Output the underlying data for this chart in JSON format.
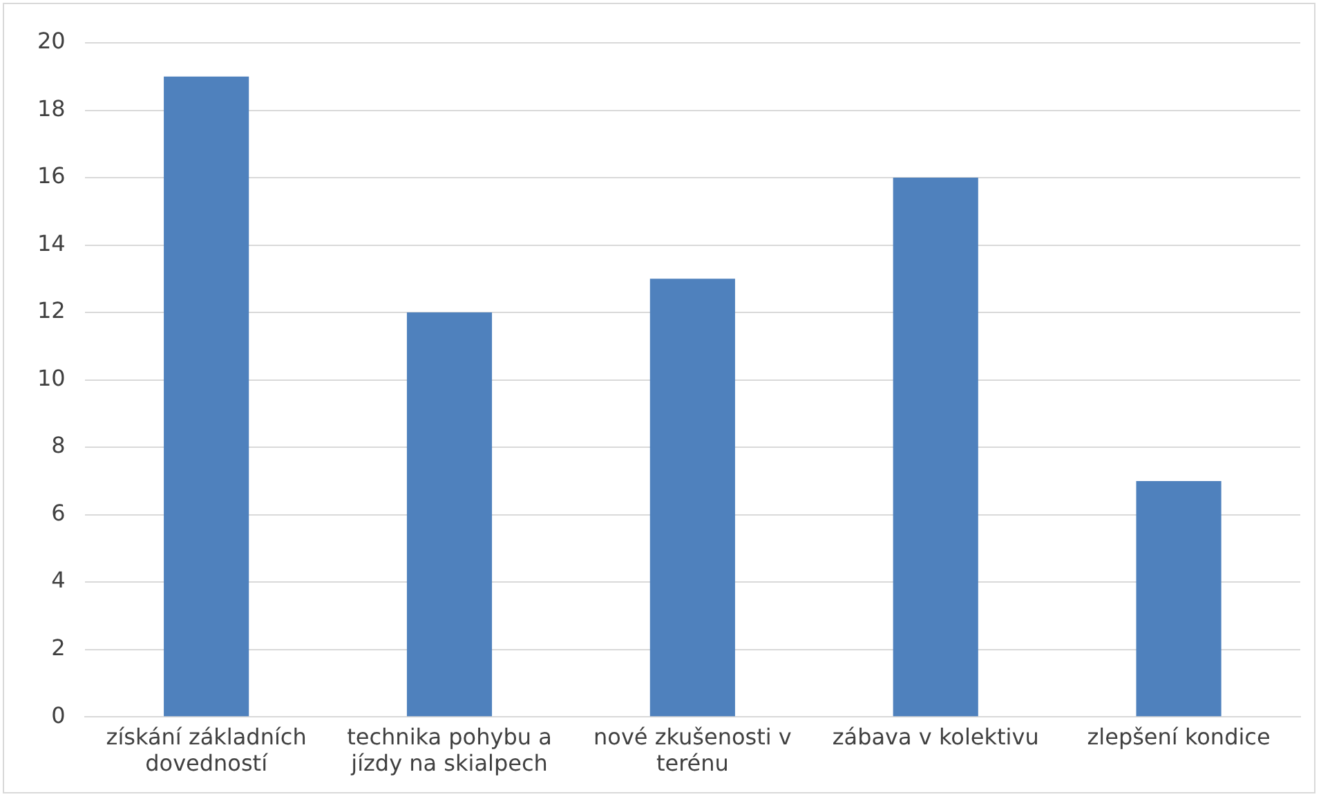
{
  "chart_data": {
    "type": "bar",
    "categories": [
      "získání základních dovedností",
      "technika pohybu a jízdy na skialpech",
      "nové zkušenosti v terénu",
      "zábava v kolektivu",
      "zlepšení kondice"
    ],
    "values": [
      19,
      12,
      13,
      16,
      7
    ],
    "color": "#4f81bd",
    "ylim": [
      0,
      20
    ],
    "yticks": [
      0,
      2,
      4,
      6,
      8,
      10,
      12,
      14,
      16,
      18,
      20
    ],
    "grid": "y",
    "legend": false
  }
}
